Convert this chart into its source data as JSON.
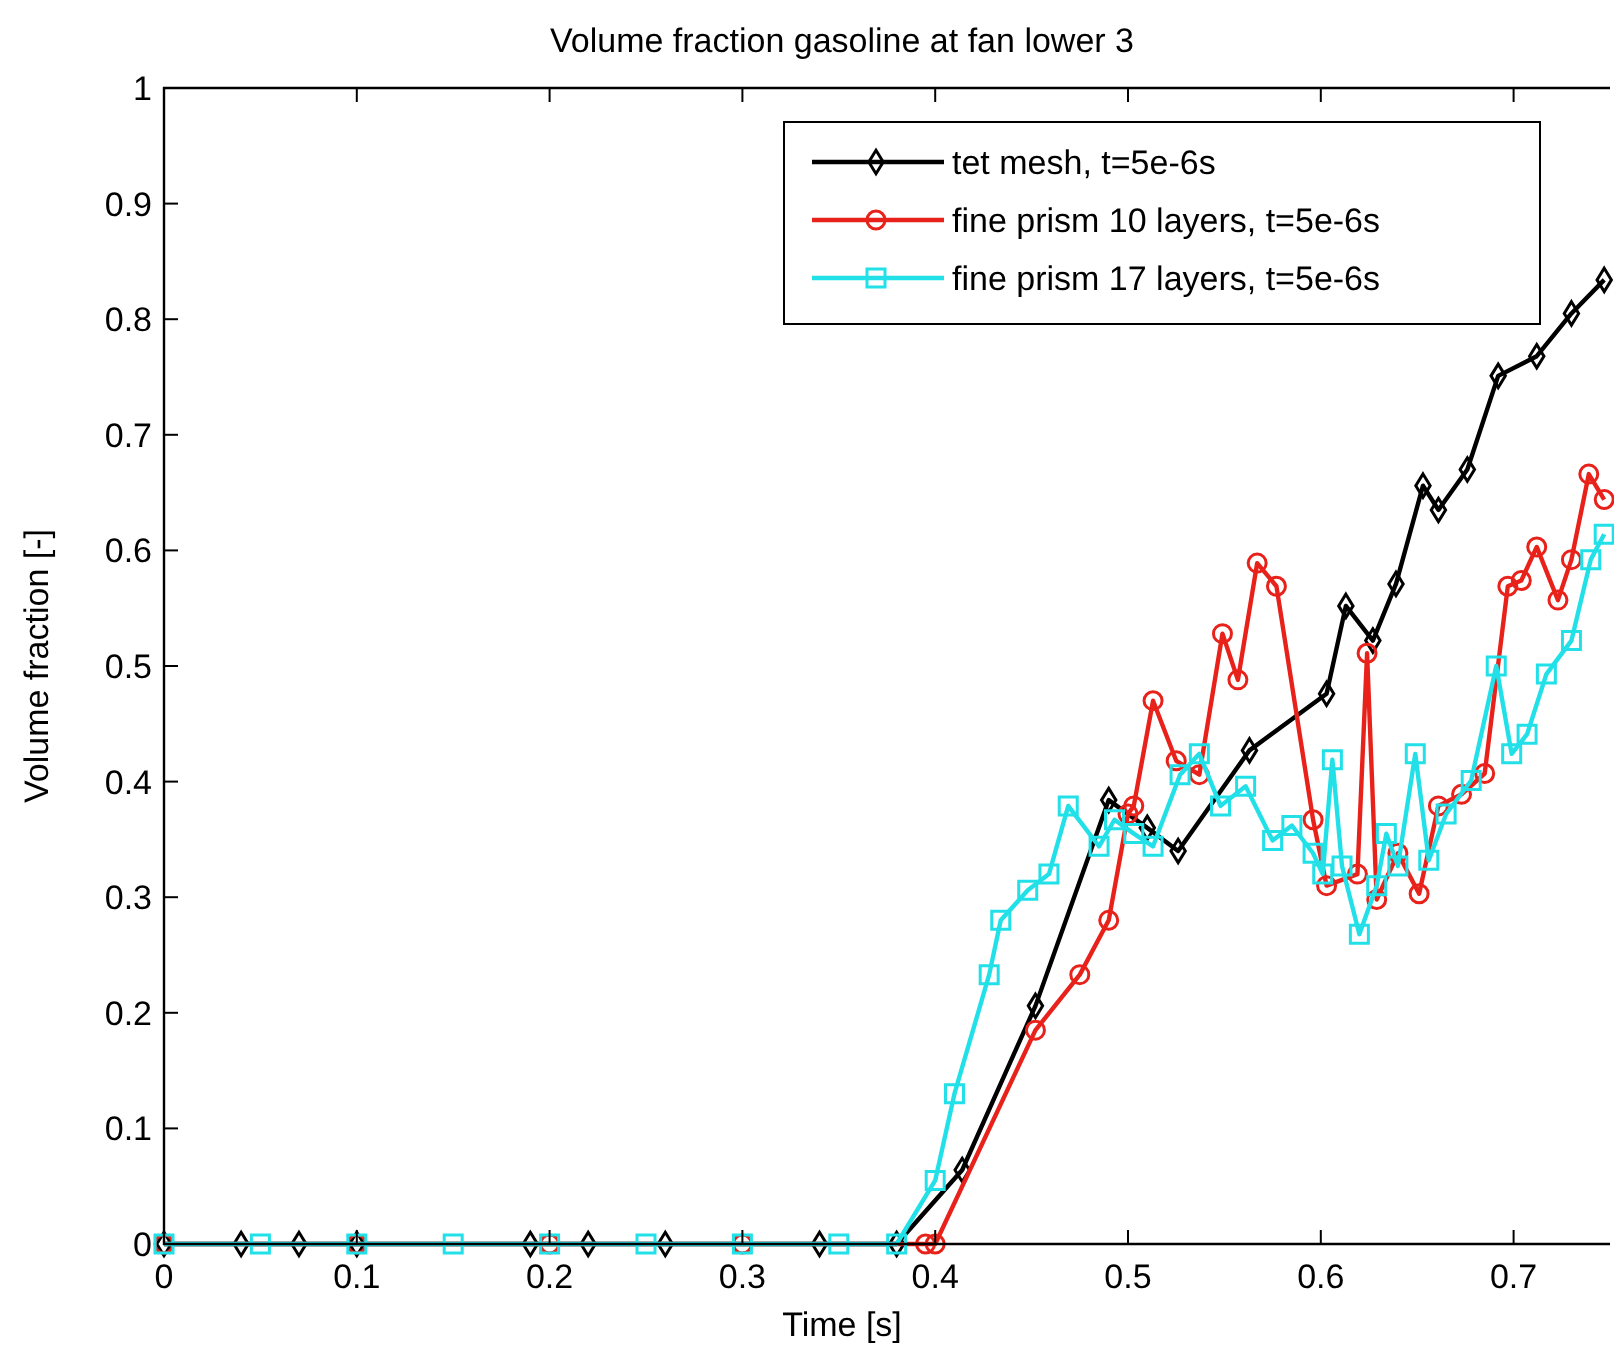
{
  "chart_data": {
    "type": "line",
    "title": "Volume fraction gasoline at fan lower 3",
    "xlabel": "Time [s]",
    "ylabel": "Volume fraction [-]",
    "xlim": [
      0,
      0.75
    ],
    "ylim": [
      0,
      1
    ],
    "xticks": [
      0,
      0.1,
      0.2,
      0.3,
      0.4,
      0.5,
      0.6,
      0.7
    ],
    "yticks": [
      0,
      0.1,
      0.2,
      0.3,
      0.4,
      0.5,
      0.6,
      0.7,
      0.8,
      0.9,
      1
    ],
    "grid": false,
    "legend": "top right",
    "line_style": "solid",
    "series": [
      {
        "name": "tet mesh, t=5e-6s",
        "color": "#000000",
        "marker": "diamond",
        "x": [
          0,
          0.04,
          0.07,
          0.1,
          0.19,
          0.22,
          0.26,
          0.34,
          0.38,
          0.414,
          0.452,
          0.49,
          0.51,
          0.526,
          0.563,
          0.603,
          0.613,
          0.627,
          0.639,
          0.653,
          0.661,
          0.676,
          0.692,
          0.712,
          0.73,
          0.747
        ],
        "values": [
          0,
          0,
          0,
          0,
          0,
          0,
          0,
          0,
          0,
          0.064,
          0.206,
          0.384,
          0.36,
          0.34,
          0.427,
          0.476,
          0.552,
          0.522,
          0.571,
          0.656,
          0.635,
          0.67,
          0.751,
          0.768,
          0.805,
          0.834
        ]
      },
      {
        "name": "fine prism 10 layers, t=5e-6s",
        "color": "#e8221a",
        "marker": "circle",
        "x": [
          0,
          0.1,
          0.2,
          0.3,
          0.395,
          0.4,
          0.452,
          0.475,
          0.49,
          0.5,
          0.503,
          0.513,
          0.525,
          0.537,
          0.549,
          0.557,
          0.567,
          0.577,
          0.596,
          0.603,
          0.619,
          0.624,
          0.629,
          0.64,
          0.651,
          0.661,
          0.673,
          0.685,
          0.697,
          0.704,
          0.712,
          0.723,
          0.73,
          0.739,
          0.747
        ],
        "values": [
          0,
          0,
          0,
          0,
          0,
          0,
          0.185,
          0.233,
          0.28,
          0.372,
          0.379,
          0.47,
          0.418,
          0.406,
          0.528,
          0.488,
          0.589,
          0.569,
          0.367,
          0.31,
          0.32,
          0.511,
          0.298,
          0.338,
          0.303,
          0.379,
          0.389,
          0.407,
          0.569,
          0.574,
          0.603,
          0.557,
          0.592,
          0.666,
          0.644
        ]
      },
      {
        "name": "fine prism 17 layers, t=5e-6s",
        "color": "#22e0e8",
        "marker": "square",
        "x": [
          0,
          0.05,
          0.1,
          0.15,
          0.2,
          0.25,
          0.3,
          0.35,
          0.38,
          0.4,
          0.41,
          0.428,
          0.434,
          0.448,
          0.459,
          0.469,
          0.485,
          0.493,
          0.503,
          0.513,
          0.527,
          0.537,
          0.548,
          0.561,
          0.575,
          0.585,
          0.596,
          0.601,
          0.606,
          0.611,
          0.62,
          0.629,
          0.634,
          0.64,
          0.649,
          0.656,
          0.665,
          0.678,
          0.691,
          0.699,
          0.707,
          0.717,
          0.73,
          0.74,
          0.747
        ],
        "values": [
          0,
          0,
          0,
          0,
          0,
          0,
          0,
          0,
          0,
          0.055,
          0.13,
          0.233,
          0.28,
          0.306,
          0.32,
          0.379,
          0.344,
          0.367,
          0.355,
          0.344,
          0.406,
          0.424,
          0.379,
          0.396,
          0.349,
          0.362,
          0.338,
          0.32,
          0.419,
          0.327,
          0.268,
          0.31,
          0.355,
          0.327,
          0.424,
          0.332,
          0.372,
          0.401,
          0.5,
          0.424,
          0.441,
          0.493,
          0.522,
          0.592,
          0.614
        ]
      }
    ]
  }
}
